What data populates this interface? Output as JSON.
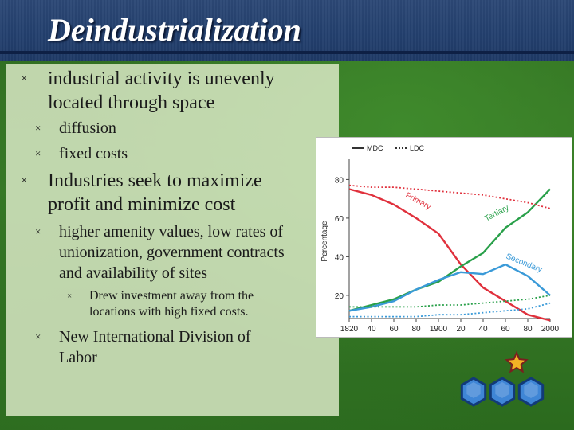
{
  "slide": {
    "title": "Deindustrialization",
    "bullets": [
      {
        "level": 1,
        "lines": [
          "industrial activity is unevenly",
          "located through space"
        ]
      },
      {
        "level": 2,
        "lines": [
          "diffusion"
        ]
      },
      {
        "level": 2,
        "lines": [
          "fixed costs"
        ]
      },
      {
        "level": 1,
        "lines": [
          "Industries seek to maximize",
          "profit and minimize cost"
        ]
      },
      {
        "level": 2,
        "lines": [
          "higher amenity values, low rates of",
          "unionization, government contracts",
          "and availability of  sites"
        ]
      },
      {
        "level": 3,
        "lines": [
          "Drew investment away from the",
          "locations with high fixed costs."
        ]
      },
      {
        "level": 2,
        "lines": [
          "New International Division of",
          "Labor"
        ]
      }
    ],
    "bullet_glyph": "×"
  },
  "chart_data": {
    "type": "line",
    "ylabel": "Percentage",
    "x_ticks": [
      "1820",
      "40",
      "60",
      "80",
      "1900",
      "20",
      "40",
      "60",
      "80",
      "2000"
    ],
    "y_ticks": [
      "20",
      "40",
      "60",
      "80"
    ],
    "x": [
      1820,
      1840,
      1860,
      1880,
      1900,
      1920,
      1940,
      1960,
      1980,
      2000
    ],
    "ylim": [
      8,
      88
    ],
    "legend": [
      {
        "label": "MDC",
        "style": "solid"
      },
      {
        "label": "LDC",
        "style": "dotted"
      }
    ],
    "series": [
      {
        "name": "Primary",
        "sector": "primary",
        "group": "MDC",
        "values": [
          75,
          72,
          67,
          60,
          52,
          36,
          24,
          17,
          10,
          7
        ]
      },
      {
        "name": "Tertiary",
        "sector": "tertiary",
        "group": "MDC",
        "values": [
          12,
          15,
          18,
          23,
          27,
          35,
          42,
          55,
          63,
          75
        ]
      },
      {
        "name": "Secondary",
        "sector": "secondary",
        "group": "MDC",
        "values": [
          12,
          14,
          17,
          23,
          28,
          32,
          31,
          36,
          30,
          20
        ]
      },
      {
        "sector": "primary",
        "group": "LDC",
        "values": [
          77,
          76,
          76,
          75,
          74,
          73,
          72,
          70,
          68,
          65
        ]
      },
      {
        "sector": "tertiary",
        "group": "LDC",
        "values": [
          14,
          14,
          14,
          14,
          15,
          15,
          16,
          17,
          18,
          20
        ]
      },
      {
        "sector": "secondary",
        "group": "LDC",
        "values": [
          9,
          9,
          9,
          9,
          10,
          10,
          11,
          12,
          13,
          16
        ]
      }
    ],
    "colors": {
      "primary": "#e0303c",
      "tertiary": "#29a04a",
      "secondary": "#3a9ad8"
    },
    "grid": false,
    "legend_placement": "top-left"
  },
  "nav_colors": {
    "hex": "#3f86d6",
    "star": "#f2b225"
  }
}
